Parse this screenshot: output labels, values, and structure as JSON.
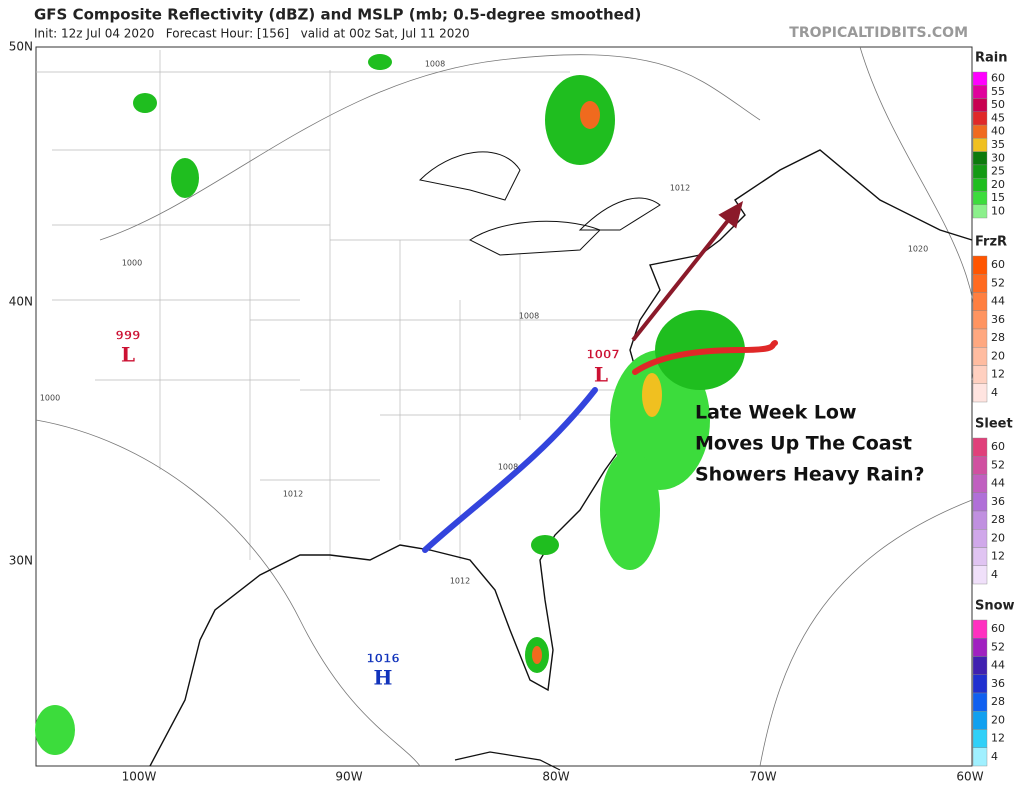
{
  "header": {
    "title": "GFS Composite Reflectivity (dBZ) and MSLP (mb; 0.5-degree smoothed)",
    "init": "Init: 12z Jul 04 2020   Forecast Hour: [156]   valid at 00z Sat, Jul 11 2020",
    "site": "TROPICALTIDBITS.COM"
  },
  "map": {
    "lat_labels": [
      "50N",
      "40N",
      "30N"
    ],
    "lon_labels": [
      "100W",
      "90W",
      "80W",
      "70W",
      "60W"
    ],
    "isobar_labels": [
      "1008",
      "1012",
      "1020",
      "1000",
      "1008",
      "1000",
      "1008",
      "1012",
      "1012"
    ],
    "centers": [
      {
        "pressure": "999",
        "letter": "L",
        "color": "#cc1133"
      },
      {
        "pressure": "1007",
        "letter": "L",
        "color": "#cc1133"
      },
      {
        "pressure": "1016",
        "letter": "H",
        "color": "#1133bb"
      }
    ],
    "annotation": [
      "Late Week Low",
      "Moves Up The Coast",
      "Showers Heavy Rain?"
    ]
  },
  "legend": [
    {
      "title": "Rain",
      "labels": [
        60,
        55,
        50,
        45,
        40,
        35,
        30,
        25,
        20,
        15,
        10
      ],
      "colors": [
        "#ff00ff",
        "#e0009c",
        "#c80050",
        "#e02828",
        "#f06a1e",
        "#f0c020",
        "#0c7a0c",
        "#149a14",
        "#1fbe1f",
        "#3cdc3c",
        "#8cf08c"
      ]
    },
    {
      "title": "FrzR",
      "labels": [
        60,
        52,
        44,
        36,
        28,
        20,
        12,
        4
      ],
      "colors": [
        "#ff5500",
        "#ff6a20",
        "#ff7f40",
        "#ff9460",
        "#ffa880",
        "#ffbca0",
        "#ffd0c0",
        "#ffe4e0"
      ]
    },
    {
      "title": "Sleet",
      "labels": [
        60,
        52,
        44,
        36,
        28,
        20,
        12,
        4
      ],
      "colors": [
        "#e0407a",
        "#d050a0",
        "#c060c0",
        "#b070d8",
        "#c090e0",
        "#d0a8ea",
        "#e0c4f2",
        "#f0e0fa"
      ]
    },
    {
      "title": "Snow",
      "labels": [
        60,
        52,
        44,
        36,
        28,
        20,
        12,
        4
      ],
      "colors": [
        "#ff30c0",
        "#a020c0",
        "#4020b0",
        "#2030d0",
        "#1060f0",
        "#10a0f0",
        "#30d0f8",
        "#a0f0ff"
      ]
    }
  ]
}
